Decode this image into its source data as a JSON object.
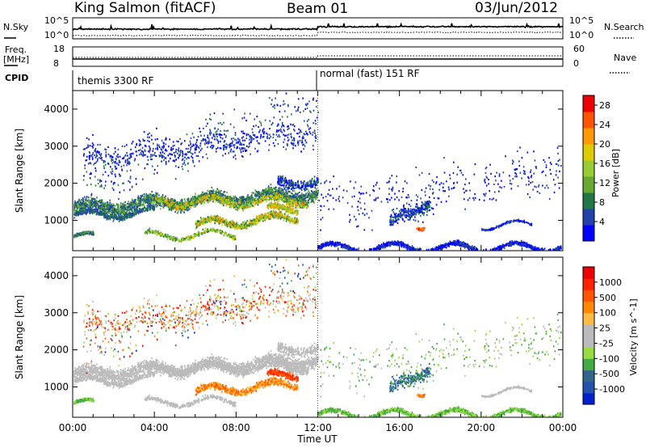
{
  "header": {
    "station": "King Salmon (fitACF)",
    "beam": "Beam 01",
    "date": "03/Jun/2012"
  },
  "status_panels": {
    "nsky_label": "N.Sky",
    "nsearch_label": "N.Search",
    "freq_label_line1": "Freq.",
    "freq_label_line2": "[MHz]",
    "nave_label": "Nave",
    "cpid_label": "CPID",
    "noise_left_ticks": [
      "10^5",
      "10^0"
    ],
    "noise_right_ticks": [
      "10^5",
      "10^0"
    ],
    "freq_left_ticks": [
      "18",
      "8"
    ],
    "freq_right_ticks": [
      "60",
      "0"
    ],
    "cpid_modes": [
      {
        "name": "themis 3300 RF",
        "start": "00:00",
        "end": "12:00"
      },
      {
        "name": "normal (fast) 151 RF",
        "start": "12:00",
        "end": "00:00"
      }
    ]
  },
  "chart_data": [
    {
      "type": "heatmap",
      "title": "Power",
      "xlabel": "",
      "ylabel": "Slant Range [km]",
      "x_ticks": [
        "00:00",
        "04:00",
        "08:00",
        "12:00",
        "16:00",
        "20:00",
        "00:00"
      ],
      "x_range_hours": [
        0,
        24
      ],
      "y_ticks": [
        1000,
        2000,
        3000,
        4000
      ],
      "ylim": [
        180,
        4500
      ],
      "colorbar_label": "Power [dB]",
      "colorbar_ticks": [
        4,
        8,
        12,
        16,
        20,
        24,
        28
      ],
      "colorbar_range": [
        0,
        30
      ],
      "colorbar_colors": [
        "#0000ff",
        "#2244aa",
        "#227744",
        "#66aa33",
        "#99cc33",
        "#ddcc00",
        "#ff9900",
        "#ff5500",
        "#ee0000"
      ]
    },
    {
      "type": "heatmap",
      "title": "Velocity",
      "xlabel": "Time UT",
      "ylabel": "Slant Range [km]",
      "x_ticks": [
        "00:00",
        "04:00",
        "08:00",
        "12:00",
        "16:00",
        "20:00",
        "00:00"
      ],
      "x_range_hours": [
        0,
        24
      ],
      "y_ticks": [
        1000,
        2000,
        3000,
        4000
      ],
      "ylim": [
        180,
        4500
      ],
      "colorbar_label": "Velocity [m s^-1]",
      "colorbar_ticks": [
        "1000",
        "500",
        "100",
        "25",
        "-25",
        "-100",
        "-500",
        "-1000"
      ],
      "colorbar_colors": [
        "#0022cc",
        "#2255aa",
        "#336688",
        "#44aa44",
        "#99dd44",
        "#bbbbbb",
        "#bbbbbb",
        "#ffbb44",
        "#ff8800",
        "#ff5500",
        "#ff2200",
        "#ee0000"
      ]
    }
  ]
}
